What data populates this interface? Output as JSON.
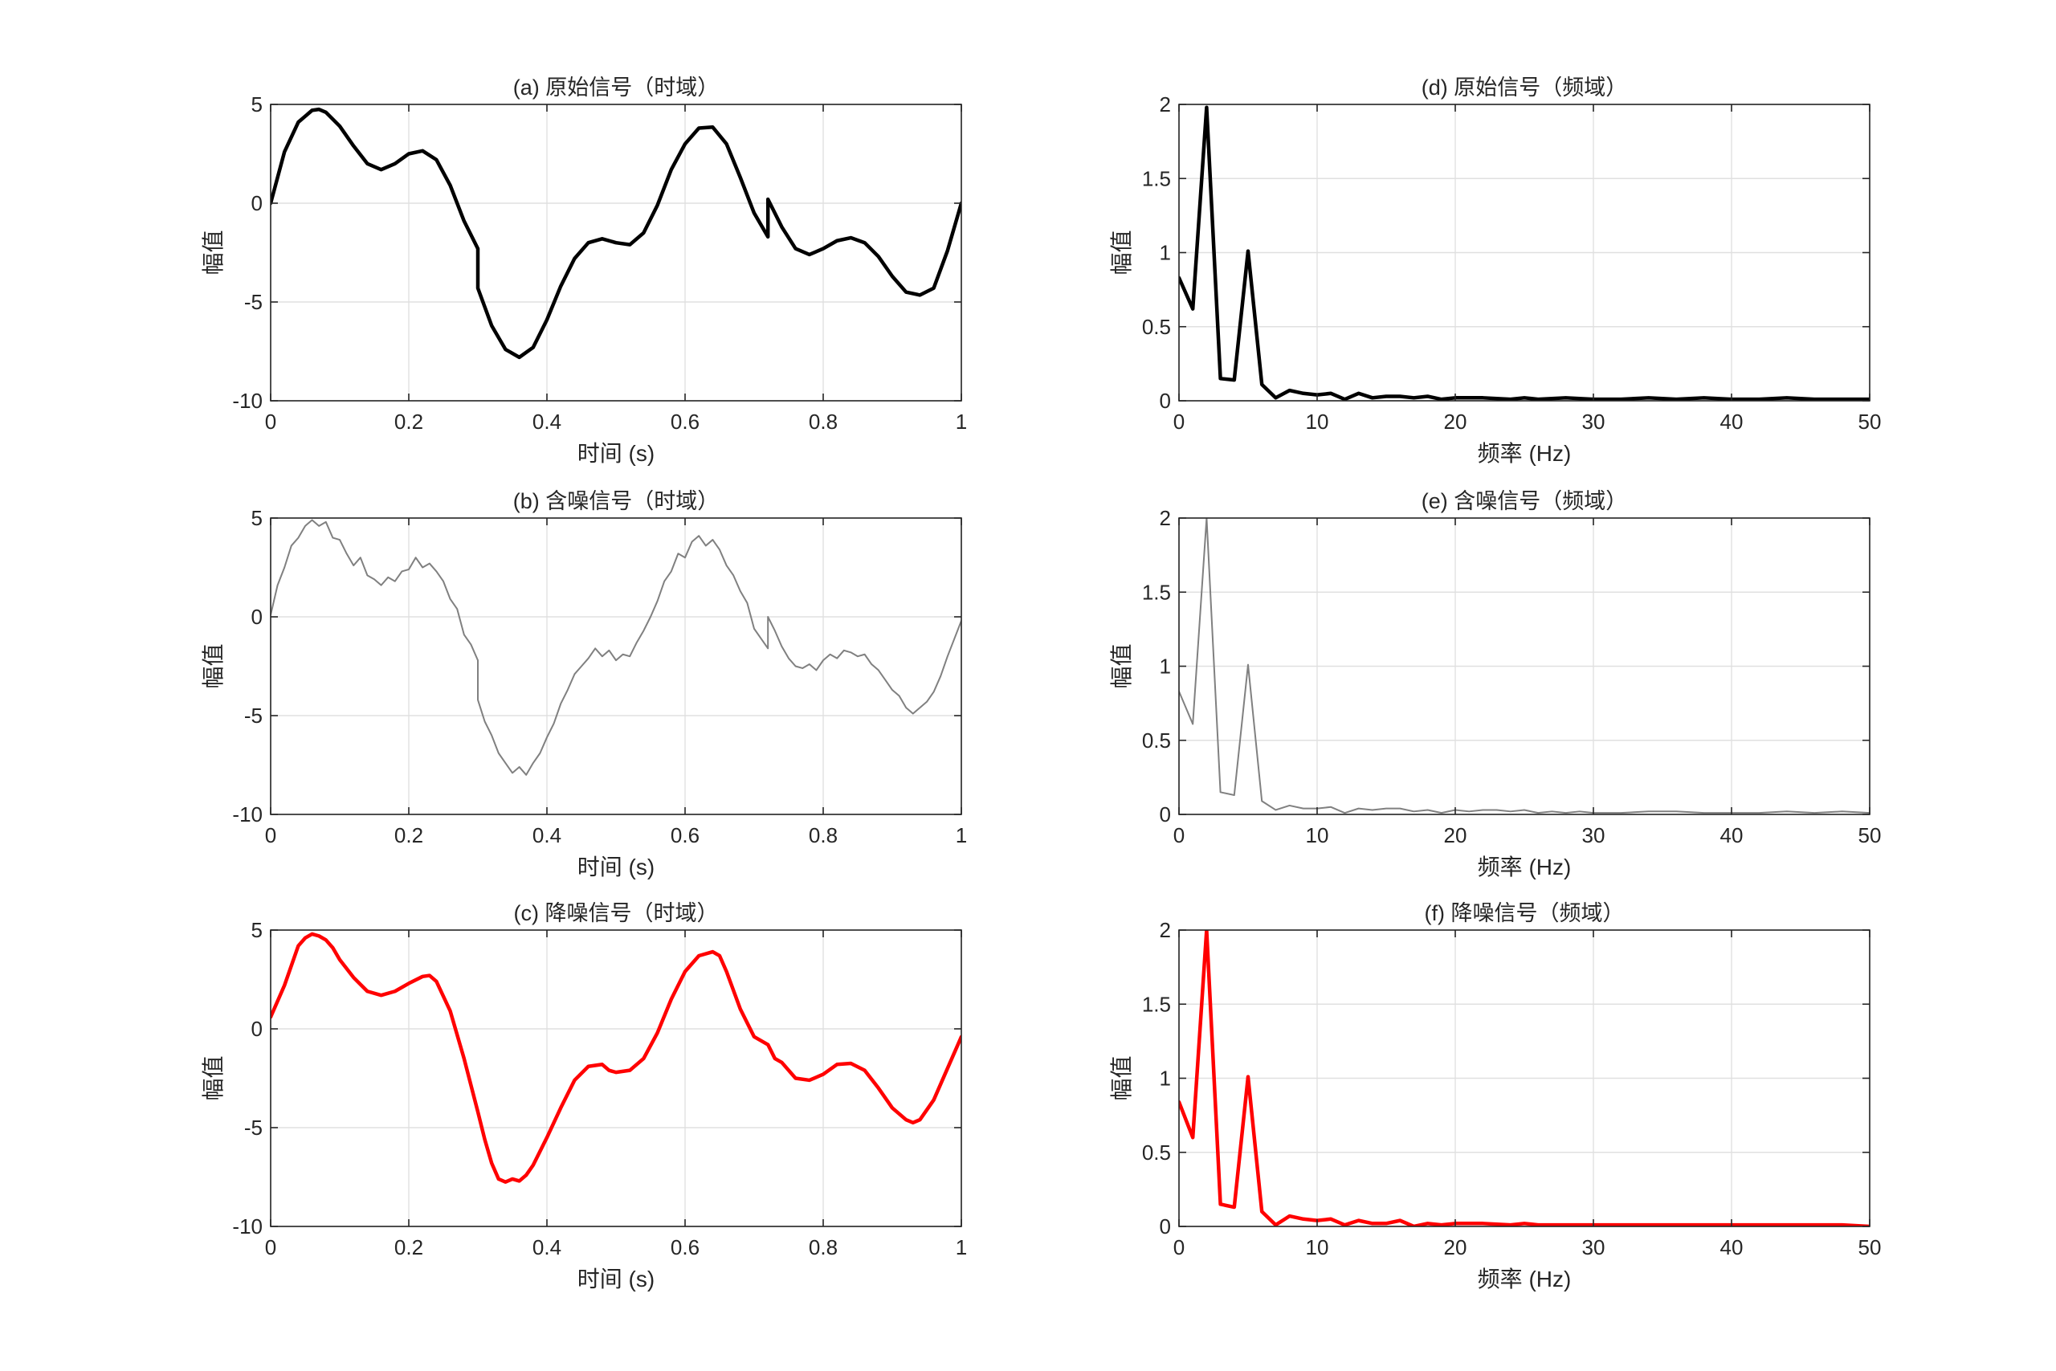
{
  "figure": {
    "background": "#ffffff",
    "axis_color": "#262626",
    "grid_color": "#e0e0e0"
  },
  "chart_data": [
    {
      "id": "a",
      "type": "line",
      "title": "(a) 原始信号（时域）",
      "xlabel": "时间 (s)",
      "ylabel": "幅值",
      "xlim": [
        0,
        1
      ],
      "ylim": [
        -10,
        5
      ],
      "xticks": [
        0,
        0.2,
        0.4,
        0.6,
        0.8,
        1
      ],
      "xtick_labels": [
        "0",
        "0.2",
        "0.4",
        "0.6",
        "0.8",
        "1"
      ],
      "yticks": [
        -10,
        -5,
        0,
        5
      ],
      "ytick_labels": [
        "-10",
        "-5",
        "0",
        "5"
      ],
      "grid": true,
      "series": [
        {
          "color": "#000000",
          "stroke": "thick",
          "x": [
            0,
            0.02,
            0.04,
            0.06,
            0.07,
            0.08,
            0.1,
            0.12,
            0.14,
            0.16,
            0.18,
            0.2,
            0.22,
            0.24,
            0.26,
            0.28,
            0.3,
            0.3,
            0.32,
            0.34,
            0.36,
            0.38,
            0.4,
            0.42,
            0.44,
            0.46,
            0.48,
            0.5,
            0.52,
            0.54,
            0.56,
            0.58,
            0.6,
            0.62,
            0.64,
            0.66,
            0.68,
            0.7,
            0.72,
            0.72,
            0.74,
            0.76,
            0.78,
            0.8,
            0.82,
            0.84,
            0.86,
            0.88,
            0.9,
            0.92,
            0.94,
            0.96,
            0.98,
            1
          ],
          "y": [
            0,
            2.6,
            4.1,
            4.7,
            4.75,
            4.6,
            3.9,
            2.9,
            2.0,
            1.7,
            2.0,
            2.5,
            2.65,
            2.2,
            0.9,
            -0.9,
            -2.3,
            -4.3,
            -6.2,
            -7.4,
            -7.8,
            -7.3,
            -5.9,
            -4.2,
            -2.8,
            -2.0,
            -1.8,
            -2.0,
            -2.1,
            -1.5,
            -0.1,
            1.7,
            3.0,
            3.8,
            3.85,
            3.0,
            1.3,
            -0.5,
            -1.7,
            0.2,
            -1.2,
            -2.3,
            -2.6,
            -2.3,
            -1.9,
            -1.75,
            -2.0,
            -2.7,
            -3.7,
            -4.5,
            -4.65,
            -4.3,
            -2.4,
            0
          ]
        }
      ]
    },
    {
      "id": "b",
      "type": "line",
      "title": "(b) 含噪信号（时域）",
      "xlabel": "时间 (s)",
      "ylabel": "幅值",
      "xlim": [
        0,
        1
      ],
      "ylim": [
        -10,
        5
      ],
      "xticks": [
        0,
        0.2,
        0.4,
        0.6,
        0.8,
        1
      ],
      "xtick_labels": [
        "0",
        "0.2",
        "0.4",
        "0.6",
        "0.8",
        "1"
      ],
      "yticks": [
        -10,
        -5,
        0,
        5
      ],
      "ytick_labels": [
        "-10",
        "-5",
        "0",
        "5"
      ],
      "grid": true,
      "series": [
        {
          "color": "#808080",
          "stroke": "thin",
          "x": [
            0,
            0.01,
            0.02,
            0.03,
            0.04,
            0.05,
            0.06,
            0.07,
            0.08,
            0.09,
            0.1,
            0.11,
            0.12,
            0.13,
            0.14,
            0.15,
            0.16,
            0.17,
            0.18,
            0.19,
            0.2,
            0.21,
            0.22,
            0.23,
            0.24,
            0.25,
            0.26,
            0.27,
            0.28,
            0.29,
            0.3,
            0.3,
            0.31,
            0.32,
            0.33,
            0.34,
            0.35,
            0.36,
            0.37,
            0.38,
            0.39,
            0.4,
            0.41,
            0.42,
            0.43,
            0.44,
            0.45,
            0.46,
            0.47,
            0.48,
            0.49,
            0.5,
            0.51,
            0.52,
            0.53,
            0.54,
            0.55,
            0.56,
            0.57,
            0.58,
            0.59,
            0.6,
            0.61,
            0.62,
            0.63,
            0.64,
            0.65,
            0.66,
            0.67,
            0.68,
            0.69,
            0.7,
            0.71,
            0.72,
            0.72,
            0.73,
            0.74,
            0.75,
            0.76,
            0.77,
            0.78,
            0.79,
            0.8,
            0.81,
            0.82,
            0.83,
            0.84,
            0.85,
            0.86,
            0.87,
            0.88,
            0.89,
            0.9,
            0.91,
            0.92,
            0.93,
            0.94,
            0.95,
            0.96,
            0.97,
            0.98,
            0.99,
            1
          ],
          "y": [
            0.1,
            1.6,
            2.5,
            3.6,
            4.0,
            4.6,
            4.9,
            4.6,
            4.8,
            4.0,
            3.9,
            3.2,
            2.6,
            3.0,
            2.1,
            1.9,
            1.6,
            2.0,
            1.8,
            2.3,
            2.4,
            3.0,
            2.5,
            2.7,
            2.3,
            1.8,
            0.9,
            0.4,
            -0.9,
            -1.4,
            -2.2,
            -4.2,
            -5.3,
            -6.0,
            -6.9,
            -7.4,
            -7.9,
            -7.6,
            -8.0,
            -7.4,
            -6.9,
            -6.1,
            -5.4,
            -4.4,
            -3.7,
            -2.9,
            -2.5,
            -2.1,
            -1.6,
            -2.0,
            -1.7,
            -2.2,
            -1.9,
            -2.0,
            -1.3,
            -0.7,
            0.0,
            0.8,
            1.8,
            2.3,
            3.2,
            3.0,
            3.8,
            4.1,
            3.6,
            3.9,
            3.4,
            2.6,
            2.1,
            1.3,
            0.7,
            -0.6,
            -1.1,
            -1.6,
            0.0,
            -0.7,
            -1.5,
            -2.1,
            -2.5,
            -2.6,
            -2.4,
            -2.7,
            -2.2,
            -1.9,
            -2.1,
            -1.7,
            -1.8,
            -2.0,
            -1.9,
            -2.4,
            -2.7,
            -3.2,
            -3.7,
            -4.0,
            -4.6,
            -4.9,
            -4.6,
            -4.3,
            -3.8,
            -3.0,
            -2.0,
            -1.1,
            -0.2
          ]
        }
      ]
    },
    {
      "id": "c",
      "type": "line",
      "title": "(c) 降噪信号（时域）",
      "xlabel": "时间 (s)",
      "ylabel": "幅值",
      "xlim": [
        0,
        1
      ],
      "ylim": [
        -10,
        5
      ],
      "xticks": [
        0,
        0.2,
        0.4,
        0.6,
        0.8,
        1
      ],
      "xtick_labels": [
        "0",
        "0.2",
        "0.4",
        "0.6",
        "0.8",
        "1"
      ],
      "yticks": [
        -10,
        -5,
        0,
        5
      ],
      "ytick_labels": [
        "-10",
        "-5",
        "0",
        "5"
      ],
      "grid": true,
      "series": [
        {
          "color": "#ff0000",
          "stroke": "thick",
          "x": [
            0,
            0.02,
            0.04,
            0.05,
            0.06,
            0.07,
            0.08,
            0.09,
            0.1,
            0.12,
            0.14,
            0.16,
            0.18,
            0.2,
            0.22,
            0.23,
            0.24,
            0.26,
            0.28,
            0.3,
            0.31,
            0.32,
            0.33,
            0.34,
            0.35,
            0.36,
            0.37,
            0.38,
            0.4,
            0.42,
            0.44,
            0.46,
            0.48,
            0.49,
            0.5,
            0.52,
            0.54,
            0.56,
            0.58,
            0.6,
            0.62,
            0.64,
            0.65,
            0.66,
            0.68,
            0.7,
            0.72,
            0.73,
            0.74,
            0.76,
            0.78,
            0.8,
            0.82,
            0.84,
            0.86,
            0.88,
            0.9,
            0.92,
            0.93,
            0.94,
            0.96,
            0.98,
            1
          ],
          "y": [
            0.6,
            2.2,
            4.2,
            4.6,
            4.8,
            4.7,
            4.5,
            4.1,
            3.5,
            2.6,
            1.9,
            1.7,
            1.9,
            2.3,
            2.65,
            2.7,
            2.4,
            0.9,
            -1.5,
            -4.2,
            -5.6,
            -6.8,
            -7.6,
            -7.75,
            -7.6,
            -7.7,
            -7.4,
            -6.9,
            -5.5,
            -4.0,
            -2.6,
            -1.9,
            -1.8,
            -2.1,
            -2.2,
            -2.1,
            -1.5,
            -0.2,
            1.5,
            2.9,
            3.7,
            3.9,
            3.7,
            2.9,
            1.0,
            -0.4,
            -0.8,
            -1.5,
            -1.7,
            -2.5,
            -2.6,
            -2.3,
            -1.8,
            -1.75,
            -2.1,
            -3.0,
            -4.0,
            -4.6,
            -4.75,
            -4.6,
            -3.6,
            -2.0,
            -0.4
          ]
        }
      ]
    },
    {
      "id": "d",
      "type": "line",
      "title": "(d) 原始信号（频域）",
      "xlabel": "频率 (Hz)",
      "ylabel": "幅值",
      "xlim": [
        0,
        50
      ],
      "ylim": [
        0,
        2
      ],
      "xticks": [
        0,
        10,
        20,
        30,
        40,
        50
      ],
      "xtick_labels": [
        "0",
        "10",
        "20",
        "30",
        "40",
        "50"
      ],
      "yticks": [
        0,
        0.5,
        1,
        1.5,
        2
      ],
      "ytick_labels": [
        "0",
        "0.5",
        "1",
        "1.5",
        "2"
      ],
      "grid": true,
      "series": [
        {
          "color": "#000000",
          "stroke": "thick",
          "x": [
            0,
            1,
            2,
            3,
            4,
            5,
            6,
            7,
            8,
            9,
            10,
            11,
            12,
            13,
            14,
            15,
            16,
            17,
            18,
            19,
            20,
            22,
            24,
            25,
            26,
            28,
            30,
            32,
            34,
            36,
            38,
            40,
            42,
            44,
            46,
            48,
            50
          ],
          "y": [
            0.83,
            0.62,
            1.98,
            0.15,
            0.14,
            1.01,
            0.11,
            0.02,
            0.07,
            0.05,
            0.04,
            0.05,
            0.01,
            0.05,
            0.02,
            0.03,
            0.03,
            0.02,
            0.03,
            0.01,
            0.02,
            0.02,
            0.01,
            0.02,
            0.01,
            0.02,
            0.01,
            0.01,
            0.02,
            0.01,
            0.02,
            0.01,
            0.01,
            0.02,
            0.01,
            0.01,
            0.01
          ]
        }
      ]
    },
    {
      "id": "e",
      "type": "line",
      "title": "(e) 含噪信号（频域）",
      "xlabel": "频率 (Hz)",
      "ylabel": "幅值",
      "xlim": [
        0,
        50
      ],
      "ylim": [
        0,
        2
      ],
      "xticks": [
        0,
        10,
        20,
        30,
        40,
        50
      ],
      "xtick_labels": [
        "0",
        "10",
        "20",
        "30",
        "40",
        "50"
      ],
      "yticks": [
        0,
        0.5,
        1,
        1.5,
        2
      ],
      "ytick_labels": [
        "0",
        "0.5",
        "1",
        "1.5",
        "2"
      ],
      "grid": true,
      "series": [
        {
          "color": "#808080",
          "stroke": "thin",
          "x": [
            0,
            1,
            2,
            3,
            4,
            5,
            6,
            7,
            8,
            9,
            10,
            11,
            12,
            13,
            14,
            15,
            16,
            17,
            18,
            19,
            20,
            21,
            22,
            23,
            24,
            25,
            26,
            27,
            28,
            29,
            30,
            32,
            34,
            36,
            38,
            40,
            42,
            44,
            46,
            48,
            50
          ],
          "y": [
            0.83,
            0.61,
            2.0,
            0.15,
            0.13,
            1.01,
            0.09,
            0.03,
            0.06,
            0.04,
            0.04,
            0.05,
            0.01,
            0.04,
            0.03,
            0.04,
            0.04,
            0.02,
            0.03,
            0.01,
            0.03,
            0.02,
            0.03,
            0.03,
            0.02,
            0.03,
            0.01,
            0.02,
            0.01,
            0.02,
            0.01,
            0.01,
            0.02,
            0.02,
            0.01,
            0.01,
            0.01,
            0.02,
            0.01,
            0.02,
            0.01
          ]
        }
      ]
    },
    {
      "id": "f",
      "type": "line",
      "title": "(f) 降噪信号（频域）",
      "xlabel": "频率 (Hz)",
      "ylabel": "幅值",
      "xlim": [
        0,
        50
      ],
      "ylim": [
        0,
        2
      ],
      "xticks": [
        0,
        10,
        20,
        30,
        40,
        50
      ],
      "xtick_labels": [
        "0",
        "10",
        "20",
        "30",
        "40",
        "50"
      ],
      "yticks": [
        0,
        0.5,
        1,
        1.5,
        2
      ],
      "ytick_labels": [
        "0",
        "0.5",
        "1",
        "1.5",
        "2"
      ],
      "grid": true,
      "series": [
        {
          "color": "#ff0000",
          "stroke": "thick",
          "x": [
            0,
            1,
            2,
            3,
            4,
            5,
            6,
            7,
            8,
            9,
            10,
            11,
            12,
            13,
            14,
            15,
            16,
            17,
            18,
            19,
            20,
            22,
            24,
            25,
            26,
            28,
            30,
            32,
            34,
            36,
            38,
            40,
            42,
            44,
            46,
            48,
            50
          ],
          "y": [
            0.84,
            0.6,
            2.0,
            0.15,
            0.13,
            1.01,
            0.1,
            0.01,
            0.07,
            0.05,
            0.04,
            0.05,
            0.01,
            0.04,
            0.02,
            0.02,
            0.04,
            0.0,
            0.02,
            0.01,
            0.02,
            0.02,
            0.01,
            0.02,
            0.01,
            0.01,
            0.01,
            0.01,
            0.01,
            0.01,
            0.01,
            0.01,
            0.01,
            0.01,
            0.01,
            0.01,
            0.0
          ]
        }
      ]
    }
  ]
}
